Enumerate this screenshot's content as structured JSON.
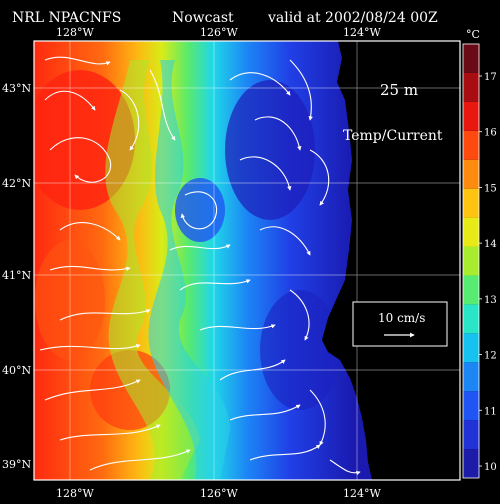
{
  "header": {
    "model": "NRL NPACNFS",
    "product": "Nowcast",
    "valid": "valid at 2002/08/24 00Z"
  },
  "map": {
    "lon_labels": [
      "128°W",
      "126°W",
      "124°W"
    ],
    "lat_labels": [
      "43°N",
      "42°N",
      "41°N",
      "40°N",
      "39°N"
    ],
    "depth_label": "25 m",
    "field_label": "Temp/Current",
    "scale_label": "10 cm/s"
  },
  "colorbar": {
    "unit": "°C",
    "ticks": [
      "17",
      "16",
      "15",
      "14",
      "13",
      "12",
      "11",
      "10"
    ],
    "colors": [
      "#1c1ca8",
      "#2133d6",
      "#1f55f2",
      "#1c86f5",
      "#16c2f0",
      "#2ae6c8",
      "#57eb71",
      "#a9ec2d",
      "#e7ea17",
      "#ffc312",
      "#ff8a10",
      "#ff4a0f",
      "#e8180f",
      "#a80d12",
      "#6a0a16"
    ]
  }
}
